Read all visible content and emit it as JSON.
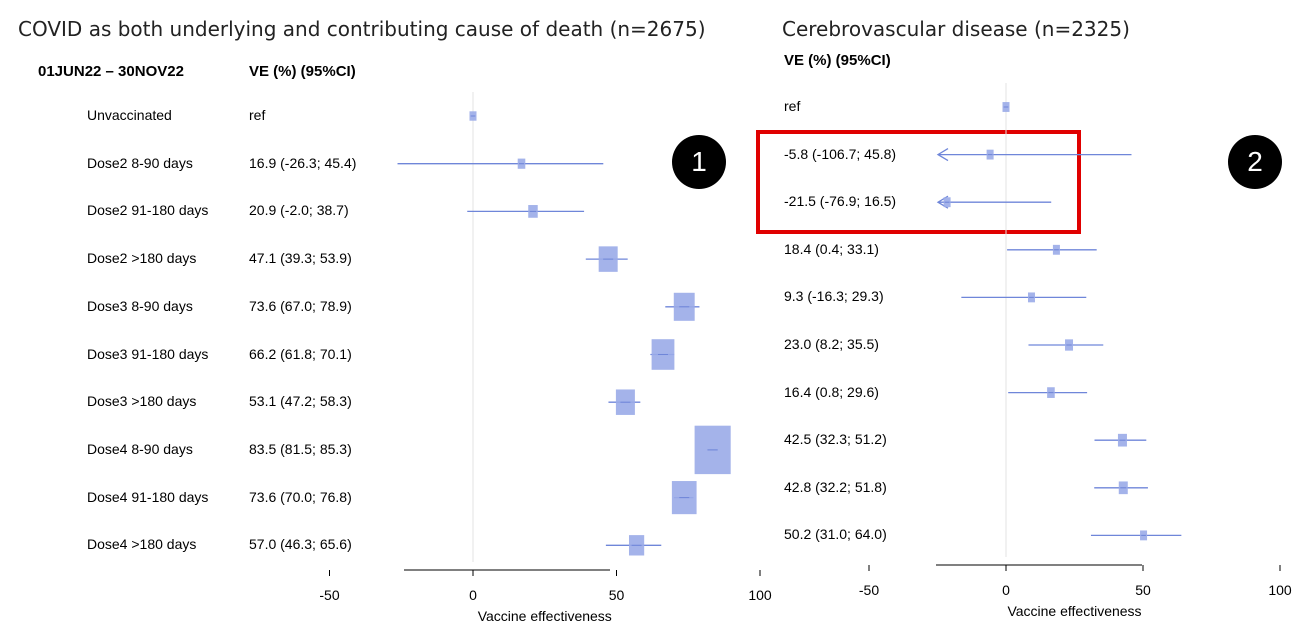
{
  "chart_data": [
    {
      "type": "forest",
      "title": "COVID as both underlying and contributing cause of death (n=2675)",
      "period_header": "01JUN22 – 30NOV22",
      "ve_header": "VE (%)  (95%CI)",
      "xlabel": "Vaccine effectiveness",
      "xlim": [
        -50,
        100
      ],
      "xticks": [
        -50,
        0,
        50,
        100
      ],
      "ref_line": 0,
      "rows": [
        {
          "group": "Unvaccinated",
          "text": "ref",
          "est": 0,
          "lo": null,
          "hi": null,
          "weight": 0.15
        },
        {
          "group": "Dose2 8-90 days",
          "text": "16.9 (-26.3; 45.4)",
          "est": 16.9,
          "lo": -26.3,
          "hi": 45.4,
          "weight": 0.2
        },
        {
          "group": "Dose2 91-180 days",
          "text": "20.9 (-2.0; 38.7)",
          "est": 20.9,
          "lo": -2.0,
          "hi": 38.7,
          "weight": 0.25
        },
        {
          "group": "Dose2 >180 days",
          "text": "47.1 (39.3; 53.9)",
          "est": 47.1,
          "lo": 39.3,
          "hi": 53.9,
          "weight": 0.5
        },
        {
          "group": "Dose3 8-90 days",
          "text": "73.6 (67.0; 78.9)",
          "est": 73.6,
          "lo": 67.0,
          "hi": 78.9,
          "weight": 0.55
        },
        {
          "group": "Dose3 91-180 days",
          "text": "66.2 (61.8; 70.1)",
          "est": 66.2,
          "lo": 61.8,
          "hi": 70.1,
          "weight": 0.6
        },
        {
          "group": "Dose3 >180 days",
          "text": "53.1 (47.2; 58.3)",
          "est": 53.1,
          "lo": 47.2,
          "hi": 58.3,
          "weight": 0.5
        },
        {
          "group": "Dose4 8-90 days",
          "text": "83.5 (81.5; 85.3)",
          "est": 83.5,
          "lo": 81.5,
          "hi": 85.3,
          "weight": 0.95
        },
        {
          "group": "Dose4 91-180 days",
          "text": "73.6 (70.0; 76.8)",
          "est": 73.6,
          "lo": 70.0,
          "hi": 76.8,
          "weight": 0.65
        },
        {
          "group": "Dose4 >180 days",
          "text": "57.0 (46.3; 65.6)",
          "est": 57.0,
          "lo": 46.3,
          "hi": 65.6,
          "weight": 0.4
        }
      ]
    },
    {
      "type": "forest",
      "title": "Cerebrovascular disease (n=2325)",
      "ve_header": "VE (%)  (95%CI)",
      "xlabel": "Vaccine effectiveness",
      "xlim": [
        -50,
        100
      ],
      "xticks": [
        -50,
        0,
        50,
        100
      ],
      "ref_line": 0,
      "rows": [
        {
          "text": "ref",
          "est": 0,
          "lo": null,
          "hi": null,
          "weight": 0.15
        },
        {
          "text": "-5.8 (-106.7; 45.8)",
          "est": -5.8,
          "lo": -106.7,
          "hi": 45.8,
          "weight": 0.12,
          "truncated_left": true
        },
        {
          "text": "-21.5 (-76.9; 16.5)",
          "est": -21.5,
          "lo": -76.9,
          "hi": 16.5,
          "weight": 0.15,
          "truncated_left": true
        },
        {
          "text": "18.4 (0.4; 33.1)",
          "est": 18.4,
          "lo": 0.4,
          "hi": 33.1,
          "weight": 0.35
        },
        {
          "text": "9.3 (-16.3; 29.3)",
          "est": 9.3,
          "lo": -16.3,
          "hi": 29.3,
          "weight": 0.3
        },
        {
          "text": "23.0 (8.2; 35.5)",
          "est": 23.0,
          "lo": 8.2,
          "hi": 35.5,
          "weight": 0.4
        },
        {
          "text": "16.4 (0.8; 29.6)",
          "est": 16.4,
          "lo": 0.8,
          "hi": 29.6,
          "weight": 0.38
        },
        {
          "text": "42.5 (32.3; 51.2)",
          "est": 42.5,
          "lo": 32.3,
          "hi": 51.2,
          "weight": 0.45
        },
        {
          "text": "42.8 (32.2; 51.8)",
          "est": 42.8,
          "lo": 32.2,
          "hi": 51.8,
          "weight": 0.45
        },
        {
          "text": "50.2 (31.0; 64.0)",
          "est": 50.2,
          "lo": 31.0,
          "hi": 64.0,
          "weight": 0.35
        }
      ]
    }
  ],
  "annotations": {
    "badge1": "1",
    "badge2": "2"
  },
  "colors": {
    "marker": "#8093e0",
    "marker_fill": "#9aabe8",
    "line": "#6f86d9",
    "highlight": "#e00000"
  }
}
